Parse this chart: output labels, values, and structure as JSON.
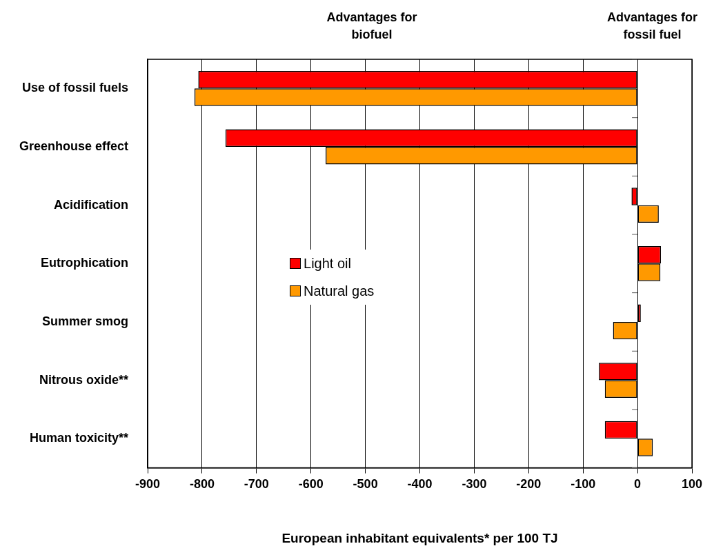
{
  "chart_data": {
    "type": "bar",
    "orientation": "horizontal",
    "categories": [
      "Use of fossil fuels",
      "Greenhouse effect",
      "Acidification",
      "Eutrophication",
      "Summer smog",
      "Nitrous oxide**",
      "Human toxicity**"
    ],
    "series": [
      {
        "name": "Light oil",
        "color": "#ff0000",
        "values": [
          -807,
          -757,
          -11,
          43,
          6,
          -71,
          -60
        ]
      },
      {
        "name": "Natural gas",
        "color": "#ff9900",
        "values": [
          -814,
          -573,
          39,
          42,
          -45,
          -60,
          28
        ]
      }
    ],
    "xlim": [
      -900,
      100
    ],
    "xticks": [
      -900,
      -800,
      -700,
      -600,
      -500,
      -400,
      -300,
      -200,
      -100,
      0,
      100
    ],
    "xlabel": "European inhabitant equivalents* per 100 TJ",
    "annotations": [
      "Advantages for biofuel",
      "Advantages for fossil fuel"
    ],
    "grid": "x",
    "legend": "center left"
  }
}
